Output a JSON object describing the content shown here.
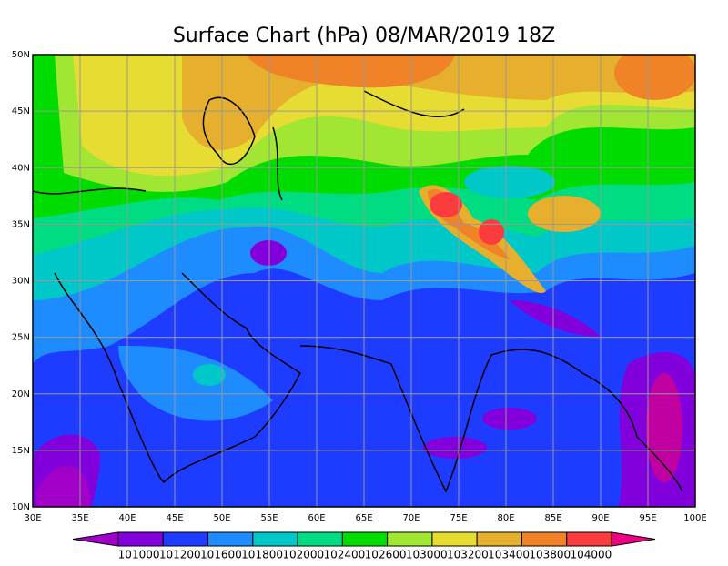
{
  "title": "Surface Chart (hPa) 08/MAR/2019 18Z",
  "map": {
    "x_ticks": [
      "30E",
      "35E",
      "40E",
      "45E",
      "50E",
      "55E",
      "60E",
      "65E",
      "70E",
      "75E",
      "80E",
      "85E",
      "90E",
      "95E",
      "100E"
    ],
    "y_ticks": [
      "10N",
      "15N",
      "20N",
      "25N",
      "30N",
      "35N",
      "40N",
      "45N",
      "50N"
    ]
  },
  "colorbar": {
    "labels": [
      "101000",
      "101200",
      "101600",
      "101800",
      "102000",
      "102400",
      "102600",
      "103000",
      "103200",
      "103400",
      "103800",
      "104000"
    ],
    "colors": [
      "#a000c8",
      "#8200dc",
      "#1e3cff",
      "#1e8cff",
      "#00c8c8",
      "#00dc82",
      "#00dc00",
      "#a0e632",
      "#e6dc32",
      "#e6af2d",
      "#f08228",
      "#fa3c3c",
      "#f00082"
    ]
  }
}
